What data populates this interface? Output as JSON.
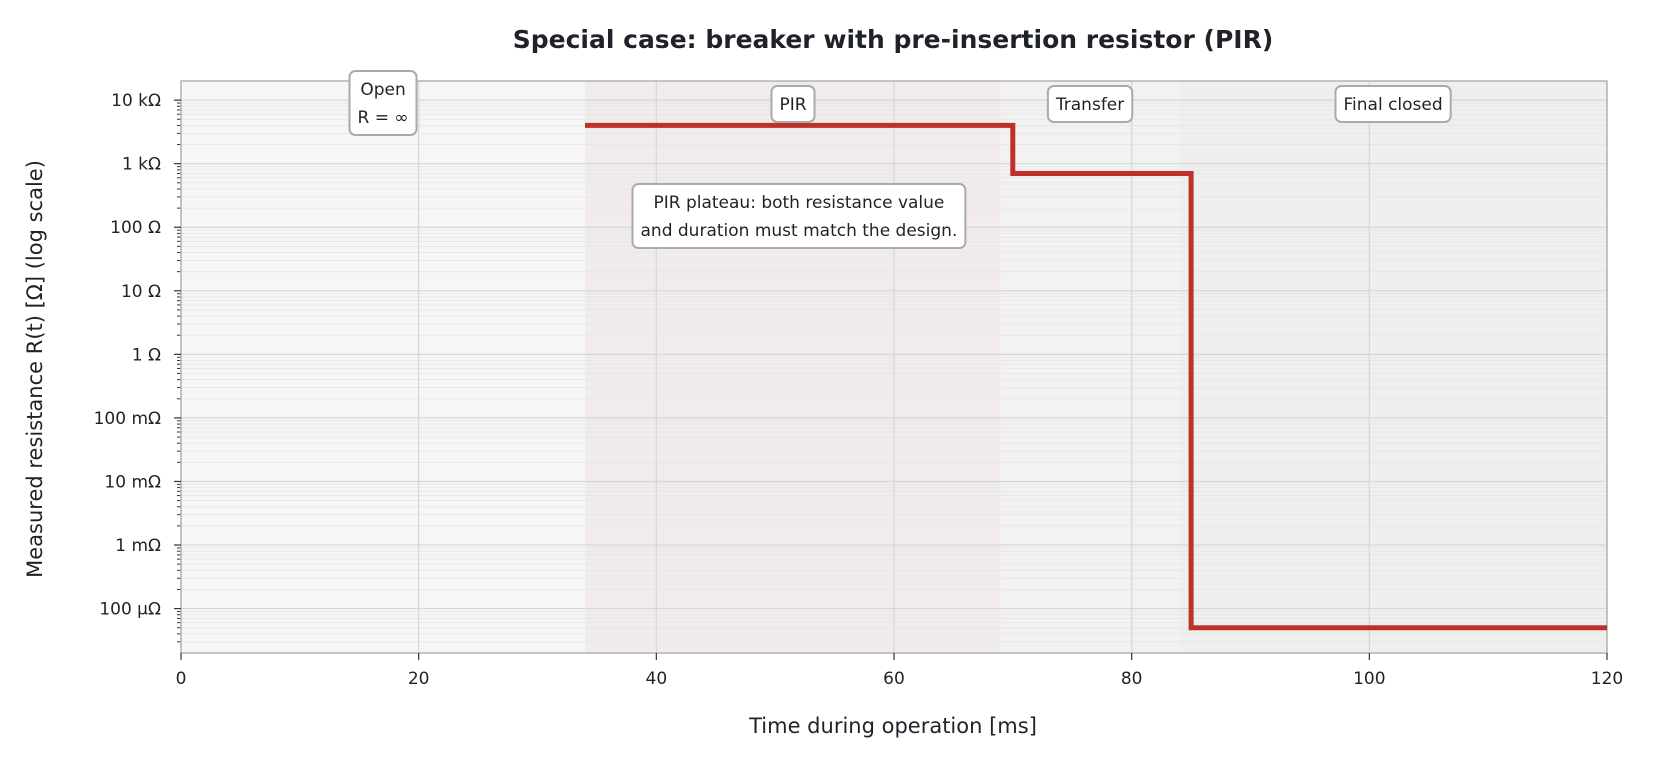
{
  "chart_data": {
    "type": "line",
    "title": "Special case: breaker with pre-insertion resistor (PIR)",
    "xlabel": "Time during operation [ms]",
    "ylabel": "Measured resistance R(t) [Ω] (log scale)",
    "xlim": [
      0,
      120
    ],
    "ylim": [
      2e-05,
      20000
    ],
    "yscale": "log",
    "grid": true,
    "x_ticks": [
      {
        "value": 0,
        "label": "0"
      },
      {
        "value": 20,
        "label": "20"
      },
      {
        "value": 40,
        "label": "40"
      },
      {
        "value": 60,
        "label": "60"
      },
      {
        "value": 80,
        "label": "80"
      },
      {
        "value": 100,
        "label": "100"
      },
      {
        "value": 120,
        "label": "120"
      }
    ],
    "y_ticks": [
      {
        "value": 0.0001,
        "label": "100 µΩ"
      },
      {
        "value": 0.001,
        "label": "1 mΩ"
      },
      {
        "value": 0.01,
        "label": "10 mΩ"
      },
      {
        "value": 0.1,
        "label": "100 mΩ"
      },
      {
        "value": 1,
        "label": "1 Ω"
      },
      {
        "value": 10,
        "label": "10 Ω"
      },
      {
        "value": 100,
        "label": "100 Ω"
      },
      {
        "value": 1000,
        "label": "1 kΩ"
      },
      {
        "value": 10000,
        "label": "10 kΩ"
      }
    ],
    "phases": [
      {
        "label": [
          "Open",
          "R = ∞"
        ],
        "x_start": 0,
        "x_end": 34,
        "label_x": 17,
        "color": "#f6f6f6"
      },
      {
        "label": [
          "PIR"
        ],
        "x_start": 34,
        "x_end": 69,
        "label_x": 51.5,
        "color": "#f1ebeb"
      },
      {
        "label": [
          "Transfer"
        ],
        "x_start": 69,
        "x_end": 84,
        "label_x": 76.5,
        "color": "#f2f2f2"
      },
      {
        "label": [
          "Final closed"
        ],
        "x_start": 84,
        "x_end": 120,
        "label_x": 102,
        "color": "#efefef"
      }
    ],
    "series": [
      {
        "color": "#c0302a",
        "x": [
          34,
          70,
          70,
          85,
          85,
          120
        ],
        "y": [
          4000,
          4000,
          700,
          700,
          5e-05,
          5e-05
        ]
      }
    ],
    "annotations": [
      {
        "lines": [
          "PIR plateau: both resistance value",
          "and duration must match the design."
        ],
        "x": 52,
        "y": 150
      }
    ]
  }
}
